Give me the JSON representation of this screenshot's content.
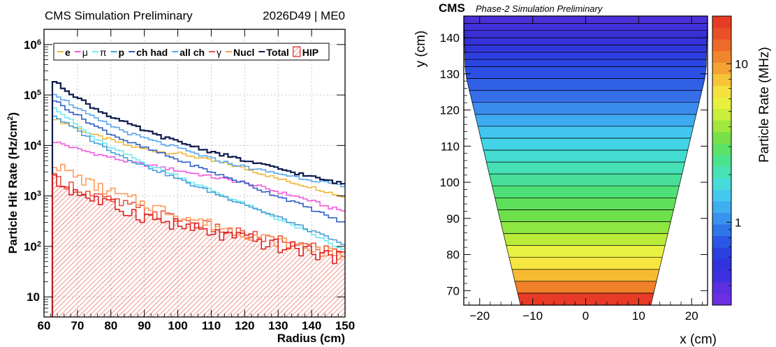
{
  "chart_data": [
    {
      "type": "line",
      "header_left": "CMS Simulation Preliminary",
      "header_right": "2026D49 | ME0",
      "xlabel": "Radius (cm)",
      "ylabel": "Particle Hit Rate (Hz/cm",
      "ylabel_sup": "2",
      "ylabel_close": ")",
      "xlim": [
        60,
        150
      ],
      "ylim": [
        4,
        2000000
      ],
      "yscale": "log",
      "x_ticks": [
        60,
        70,
        80,
        90,
        100,
        110,
        120,
        130,
        140,
        150
      ],
      "y_tick_labels": [
        {
          "v": 10,
          "base": "10",
          "exp": ""
        },
        {
          "v": 100,
          "base": "10",
          "exp": "2"
        },
        {
          "v": 1000,
          "base": "10",
          "exp": "3"
        },
        {
          "v": 10000,
          "base": "10",
          "exp": "4"
        },
        {
          "v": 100000,
          "base": "10",
          "exp": "5"
        },
        {
          "v": 1000000,
          "base": "10",
          "exp": "6"
        }
      ],
      "grid": true,
      "legend_position": "top",
      "series": [
        {
          "name": "e",
          "color": "#f0b73a",
          "x": [
            63,
            65,
            70,
            75,
            80,
            85,
            90,
            95,
            100,
            105,
            110,
            115,
            120,
            125,
            130,
            135,
            140,
            145,
            150
          ],
          "values": [
            35000,
            30000,
            22000,
            16000,
            13000,
            10000,
            8500,
            7500,
            7000,
            6000,
            5000,
            4300,
            3500,
            2800,
            2200,
            1800,
            1500,
            1200,
            950
          ]
        },
        {
          "name": "μ",
          "color": "#f45ae0",
          "x": [
            63,
            65,
            70,
            75,
            80,
            85,
            90,
            95,
            100,
            105,
            110,
            115,
            120,
            125,
            130,
            135,
            140,
            145,
            150
          ],
          "values": [
            12000,
            11000,
            8500,
            7000,
            5800,
            4800,
            4200,
            3700,
            3200,
            2800,
            2400,
            2100,
            1800,
            1500,
            1200,
            1000,
            800,
            600,
            500
          ]
        },
        {
          "name": "π",
          "color": "#6ee8f0",
          "x": [
            63,
            65,
            70,
            75,
            80,
            85,
            90,
            95,
            100,
            105,
            110,
            115,
            120,
            125,
            130,
            135,
            140,
            145,
            150
          ],
          "values": [
            60000,
            45000,
            25000,
            14000,
            9000,
            6500,
            4500,
            3300,
            2500,
            1800,
            1300,
            950,
            700,
            500,
            350,
            250,
            180,
            120,
            80
          ]
        },
        {
          "name": "p",
          "color": "#4aa0d8",
          "x": [
            63,
            65,
            70,
            75,
            80,
            85,
            90,
            95,
            100,
            105,
            110,
            115,
            120,
            125,
            130,
            135,
            140,
            145,
            150
          ],
          "values": [
            40000,
            32000,
            20000,
            12000,
            8000,
            5500,
            4000,
            3000,
            2200,
            1600,
            1200,
            900,
            700,
            500,
            380,
            280,
            200,
            150,
            100
          ]
        },
        {
          "name": "ch had",
          "color": "#2e5fc8",
          "x": [
            63,
            65,
            70,
            75,
            80,
            85,
            90,
            95,
            100,
            105,
            110,
            115,
            120,
            125,
            130,
            135,
            140,
            145,
            150
          ],
          "values": [
            80000,
            65000,
            40000,
            25000,
            17000,
            12000,
            9000,
            7000,
            5200,
            4000,
            3000,
            2300,
            1800,
            1300,
            1000,
            750,
            550,
            400,
            280
          ]
        },
        {
          "name": "all ch",
          "color": "#5aa8ee",
          "x": [
            63,
            65,
            70,
            75,
            80,
            85,
            90,
            95,
            100,
            105,
            110,
            115,
            120,
            125,
            130,
            135,
            140,
            145,
            150
          ],
          "values": [
            110000,
            90000,
            55000,
            35000,
            25000,
            18000,
            14000,
            11000,
            9000,
            7000,
            5500,
            4500,
            3800,
            3200,
            2800,
            2400,
            2100,
            1800,
            1500
          ]
        },
        {
          "name": "γ",
          "color": "#e8553e",
          "x": [
            63,
            65,
            70,
            75,
            80,
            85,
            90,
            95,
            100,
            105,
            110,
            115,
            120,
            125,
            130,
            135,
            140,
            145,
            150
          ],
          "values": [
            2200,
            2000,
            1400,
            1000,
            800,
            650,
            520,
            420,
            350,
            290,
            240,
            200,
            170,
            150,
            130,
            115,
            100,
            85,
            70
          ]
        },
        {
          "name": "Nucl",
          "color": "#ff9a5a",
          "x": [
            63,
            65,
            70,
            75,
            80,
            85,
            90,
            95,
            100,
            105,
            110,
            115,
            120,
            125,
            130,
            135,
            140,
            145,
            150
          ],
          "values": [
            4500,
            3600,
            2400,
            1600,
            1200,
            900,
            700,
            550,
            430,
            340,
            270,
            220,
            180,
            150,
            125,
            105,
            90,
            75,
            60
          ]
        },
        {
          "name": "Total",
          "color": "#0d1a4a",
          "x": [
            63,
            65,
            70,
            75,
            80,
            85,
            90,
            95,
            100,
            105,
            110,
            115,
            120,
            125,
            130,
            135,
            140,
            145,
            150
          ],
          "values": [
            190000,
            150000,
            90000,
            55000,
            38000,
            27000,
            20000,
            15000,
            12000,
            9500,
            7500,
            6200,
            5000,
            4200,
            3500,
            2900,
            2400,
            2000,
            1700
          ]
        },
        {
          "name": "HIP",
          "color": "#e02020",
          "fill": "hatch",
          "x": [
            63,
            65,
            70,
            75,
            80,
            85,
            90,
            95,
            100,
            105,
            110,
            115,
            120,
            125,
            130,
            135,
            140,
            145,
            150
          ],
          "values": [
            2000,
            1700,
            1200,
            850,
            650,
            500,
            400,
            320,
            260,
            220,
            180,
            160,
            140,
            120,
            100,
            90,
            80,
            65,
            55
          ]
        }
      ]
    },
    {
      "type": "heatmap",
      "title": "CMS",
      "subtitle": "Phase-2 Simulation Preliminary",
      "xlabel": "x (cm)",
      "ylabel": "y (cm)",
      "zlabel": "Particle Rate (MHz)",
      "xlim": [
        -23,
        23
      ],
      "ylim": [
        66,
        146
      ],
      "x_ticks": [
        -20,
        -10,
        0,
        10,
        20
      ],
      "x_tick_labels": [
        "−20",
        "−10",
        "0",
        "10",
        "20"
      ],
      "y_ticks": [
        70,
        80,
        90,
        100,
        110,
        120,
        130,
        140
      ],
      "z_ticks": [
        1,
        10
      ],
      "zscale": "log",
      "zlim": [
        0.3,
        20
      ],
      "chamber": {
        "y_min": 66,
        "y_max": 146,
        "half_width_bottom": 12.3,
        "half_width_at_130": 22.7,
        "half_width_top": 23
      },
      "strip_y_edges": [
        66,
        69.3,
        72.6,
        75.9,
        79.2,
        82.5,
        85.8,
        89.1,
        92.4,
        95.7,
        99.0,
        102.3,
        105.6,
        108.9,
        112.2,
        115.5,
        118.8,
        122.1,
        125.4,
        128.7,
        132.0,
        134.0,
        136.0,
        138.0,
        140.0,
        142.0,
        144.0,
        146.0
      ],
      "strip_colors": [
        "#e83a26",
        "#f0802a",
        "#f7bb32",
        "#f6e640",
        "#e8f040",
        "#b8ec38",
        "#8ee640",
        "#6ee04c",
        "#5ee05a",
        "#4ee076",
        "#48e098",
        "#46e0b6",
        "#44dcd0",
        "#42d4e6",
        "#40c6f0",
        "#3eaaf0",
        "#3a8cec",
        "#356ee8",
        "#3060e6",
        "#2c50e4",
        "#2a46e2",
        "#2c3ee0",
        "#3036dc",
        "#3432d8",
        "#3a30d6",
        "#4230d8",
        "#4c30da"
      ],
      "colorbar_colors": [
        "#6b2ee0",
        "#5a30e0",
        "#3e30de",
        "#3032dc",
        "#2a40e0",
        "#2a58e4",
        "#3074ea",
        "#3892ee",
        "#3eaef0",
        "#44c8f0",
        "#46dcdc",
        "#48e2b4",
        "#4ae28c",
        "#5ce266",
        "#7ae048",
        "#a2e83c",
        "#caee3a",
        "#eaee3e",
        "#f6e040",
        "#f6c438",
        "#f4a432",
        "#f0862c",
        "#ee6a2a",
        "#ea5028",
        "#e63c26"
      ]
    }
  ]
}
